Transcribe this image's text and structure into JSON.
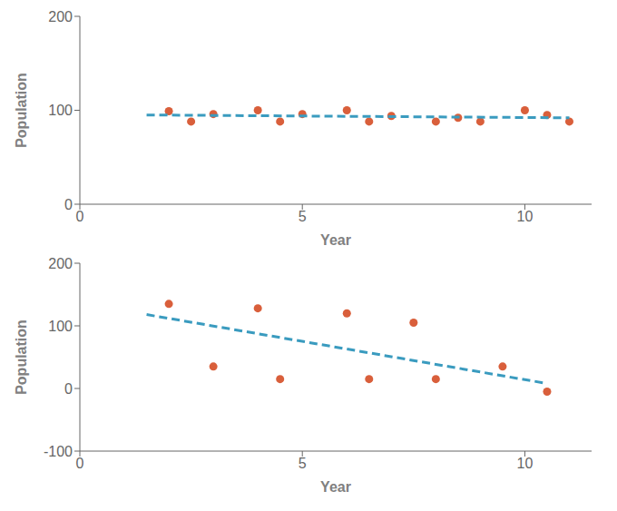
{
  "chart_data": [
    {
      "type": "scatter",
      "xlabel": "Year",
      "ylabel": "Population",
      "xlim": [
        0,
        11.5
      ],
      "xticks": [
        0,
        5,
        10
      ],
      "ylim": [
        0,
        200
      ],
      "yticks": [
        0,
        100,
        200
      ],
      "grid": false,
      "series": [
        {
          "type": "scatter",
          "marker": "circle",
          "color": "#d95f3b",
          "x": [
            2,
            2.5,
            3,
            4,
            4.5,
            5,
            6,
            6.5,
            7,
            8,
            8.5,
            9,
            10,
            10.5,
            11
          ],
          "values": [
            99,
            88,
            96,
            100,
            88,
            96,
            100,
            88,
            94,
            88,
            92,
            88,
            100,
            95,
            88
          ]
        },
        {
          "type": "line",
          "line_style": "dashed",
          "color": "#3a9bbf",
          "x": [
            1.5,
            11
          ],
          "values": [
            95,
            92
          ]
        }
      ]
    },
    {
      "type": "scatter",
      "xlabel": "Year",
      "ylabel": "Population",
      "xlim": [
        0,
        11.5
      ],
      "xticks": [
        0,
        5,
        10
      ],
      "ylim": [
        -100,
        200
      ],
      "yticks": [
        -100,
        0,
        100,
        200
      ],
      "grid": false,
      "series": [
        {
          "type": "scatter",
          "marker": "circle",
          "color": "#d95f3b",
          "x": [
            2,
            3,
            4,
            4.5,
            6,
            6.5,
            7.5,
            8,
            9.5,
            10.5
          ],
          "values": [
            135,
            35,
            128,
            15,
            120,
            15,
            105,
            15,
            35,
            -5
          ]
        },
        {
          "type": "line",
          "line_style": "dashed",
          "color": "#3a9bbf",
          "x": [
            1.5,
            10.5
          ],
          "values": [
            118,
            8
          ]
        }
      ]
    }
  ]
}
